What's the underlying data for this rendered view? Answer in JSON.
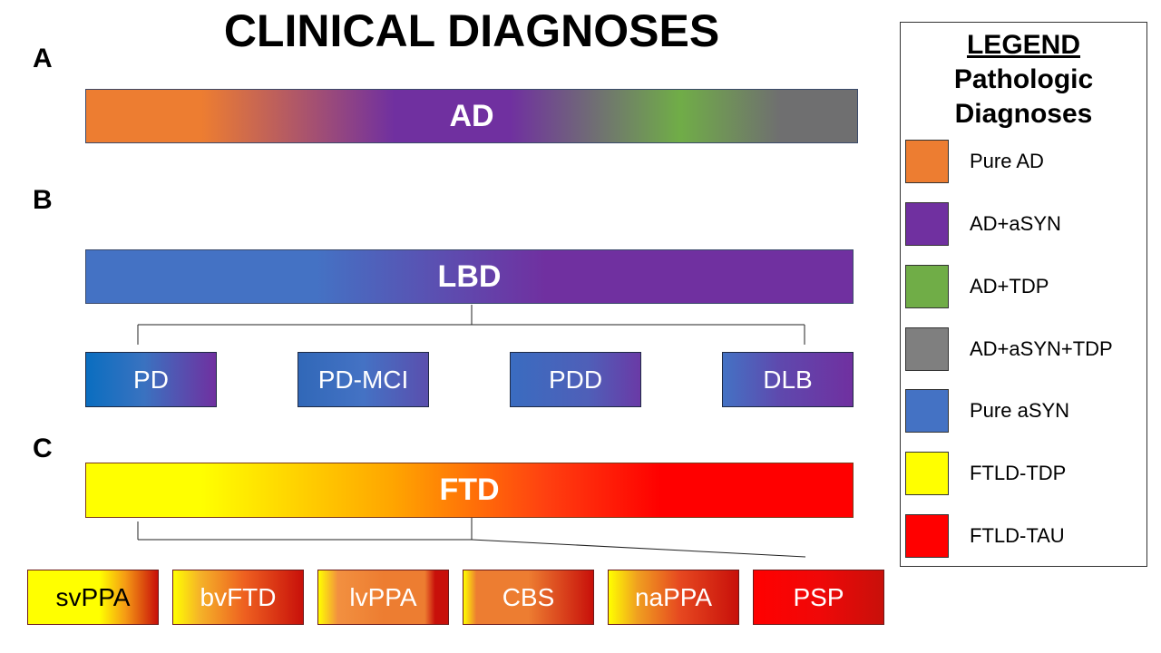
{
  "title": "CLINICAL DIAGNOSES",
  "sections": {
    "a": {
      "letter": "A",
      "bar_label": "AD"
    },
    "b": {
      "letter": "B",
      "bar_label": "LBD",
      "subtypes": [
        "PD",
        "PD-MCI",
        "PDD",
        "DLB"
      ]
    },
    "c": {
      "letter": "C",
      "bar_label": "FTD",
      "subtypes": [
        "svPPA",
        "bvFTD",
        "lvPPA",
        "CBS",
        "naPPA",
        "PSP"
      ]
    }
  },
  "legend": {
    "heading": "LEGEND",
    "subheading_1": "Pathologic",
    "subheading_2": "Diagnoses",
    "items": [
      {
        "label": "Pure AD",
        "color": "#ED7D31"
      },
      {
        "label": "AD+aSYN",
        "color": "#7030A0"
      },
      {
        "label": "AD+TDP",
        "color": "#70AD47"
      },
      {
        "label": "AD+aSYN+TDP",
        "color": "#7F7F7F"
      },
      {
        "label": "Pure aSYN",
        "color": "#4472C4"
      },
      {
        "label": "FTLD-TDP",
        "color": "#FFFF00"
      },
      {
        "label": "FTLD-TAU",
        "color": "#FF0000"
      }
    ]
  }
}
